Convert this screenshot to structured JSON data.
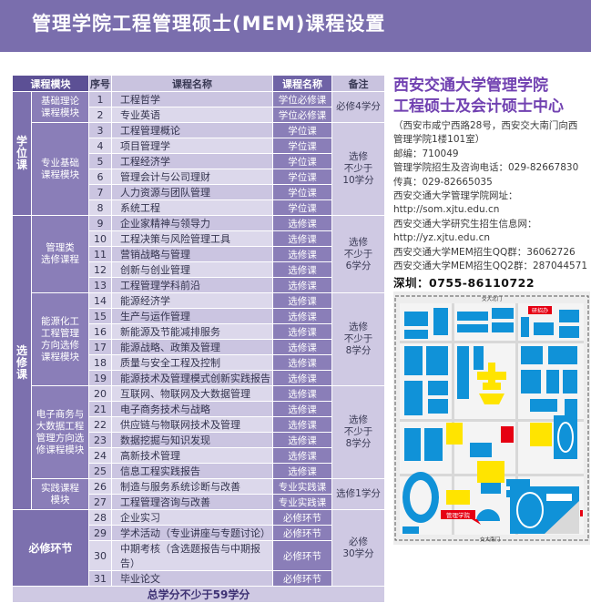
{
  "theme": {
    "banner_purple": "#7A6EAD",
    "header_dark_purple": "#5C5095",
    "cell_purple": "#8A7EB8",
    "stripe_dark": "#CBC5E1",
    "stripe_light": "#DCD8EB",
    "sidebar_title_purple": "#7141B1"
  },
  "banner": {
    "title": "管理学院工程管理硕士(MEM)课程设置"
  },
  "table": {
    "headers": {
      "module": "课程模块",
      "no": "序号",
      "name": "课程名称",
      "type": "课程名称",
      "note": "备注"
    },
    "categories": [
      {
        "label": "学位课",
        "start": 1,
        "end": 8,
        "horizontal": false
      },
      {
        "label": "选修课",
        "start": 9,
        "end": 27,
        "horizontal": false
      },
      {
        "label": "必修环节",
        "start": 28,
        "end": 31,
        "horizontal": true
      }
    ],
    "modules": [
      {
        "start": 1,
        "end": 2,
        "lines": [
          "基础理论",
          "课程模块"
        ]
      },
      {
        "start": 3,
        "end": 8,
        "lines": [
          "专业基础",
          "课程模块"
        ]
      },
      {
        "start": 9,
        "end": 13,
        "lines": [
          "管理类",
          "选修课程"
        ]
      },
      {
        "start": 14,
        "end": 19,
        "lines": [
          "能源化工",
          "工程管理",
          "方向选修",
          "课程模块"
        ]
      },
      {
        "start": 20,
        "end": 25,
        "lines": [
          "电子商务与",
          "大数据工程",
          "管理方向选",
          "修课程模块"
        ]
      },
      {
        "start": 26,
        "end": 27,
        "lines": [
          "实践课程",
          "模块"
        ]
      }
    ],
    "notes": [
      {
        "start": 1,
        "end": 2,
        "lines": [
          "必修4学分"
        ]
      },
      {
        "start": 3,
        "end": 8,
        "lines": [
          "选修",
          "不少于",
          "10学分"
        ]
      },
      {
        "start": 9,
        "end": 13,
        "lines": [
          "选修",
          "不少于",
          "6学分"
        ]
      },
      {
        "start": 14,
        "end": 19,
        "lines": [
          "选修",
          "不少于",
          "8学分"
        ]
      },
      {
        "start": 20,
        "end": 25,
        "lines": [
          "选修",
          "不少于",
          "8学分"
        ]
      },
      {
        "start": 26,
        "end": 27,
        "lines": [
          "选修1学分"
        ]
      },
      {
        "start": 28,
        "end": 31,
        "lines": [
          "必修",
          "30学分"
        ]
      }
    ],
    "courses": [
      {
        "no": "1",
        "name": "工程哲学",
        "type": "学位必修课"
      },
      {
        "no": "2",
        "name": "专业英语",
        "type": "学位必修课"
      },
      {
        "no": "3",
        "name": "工程管理概论",
        "type": "学位课"
      },
      {
        "no": "4",
        "name": "项目管理学",
        "type": "学位课"
      },
      {
        "no": "5",
        "name": "工程经济学",
        "type": "学位课"
      },
      {
        "no": "6",
        "name": "管理会计与公司理财",
        "type": "学位课"
      },
      {
        "no": "7",
        "name": "人力资源与团队管理",
        "type": "学位课"
      },
      {
        "no": "8",
        "name": "系统工程",
        "type": "学位课"
      },
      {
        "no": "9",
        "name": "企业家精神与领导力",
        "type": "选修课"
      },
      {
        "no": "10",
        "name": "工程决策与风险管理工具",
        "type": "选修课"
      },
      {
        "no": "11",
        "name": "营销战略与管理",
        "type": "选修课"
      },
      {
        "no": "12",
        "name": "创新与创业管理",
        "type": "选修课"
      },
      {
        "no": "13",
        "name": "工程管理学科前沿",
        "type": "选修课"
      },
      {
        "no": "14",
        "name": "能源经济学",
        "type": "选修课"
      },
      {
        "no": "15",
        "name": "生产与运作管理",
        "type": "选修课"
      },
      {
        "no": "16",
        "name": "新能源及节能减排服务",
        "type": "选修课"
      },
      {
        "no": "17",
        "name": "能源战略、政策及管理",
        "type": "选修课"
      },
      {
        "no": "18",
        "name": "质量与安全工程及控制",
        "type": "选修课"
      },
      {
        "no": "19",
        "name": "能源技术及管理模式创新实践报告",
        "type": "选修课"
      },
      {
        "no": "20",
        "name": "互联网、物联网及大数据管理",
        "type": "选修课"
      },
      {
        "no": "21",
        "name": "电子商务技术与战略",
        "type": "选修课"
      },
      {
        "no": "22",
        "name": "供应链与物联网技术及管理",
        "type": "选修课"
      },
      {
        "no": "23",
        "name": "数据挖掘与知识发现",
        "type": "选修课"
      },
      {
        "no": "24",
        "name": "高新技术管理",
        "type": "选修课"
      },
      {
        "no": "25",
        "name": "信息工程实践报告",
        "type": "选修课"
      },
      {
        "no": "26",
        "name": "制造与服务系统诊断与改善",
        "type": "专业实践课"
      },
      {
        "no": "27",
        "name": "工程管理咨询与改善",
        "type": "专业实践课"
      },
      {
        "no": "28",
        "name": "企业实习",
        "type": "必修环节"
      },
      {
        "no": "29",
        "name": "学术活动（专业讲座与专题讨论）",
        "type": "必修环节"
      },
      {
        "no": "30",
        "name": "中期考核（含选题报告与中期报告）",
        "type": "必修环节"
      },
      {
        "no": "31",
        "name": "毕业论文",
        "type": "必修环节"
      }
    ],
    "footer": "总学分不少于59学分"
  },
  "sidebar": {
    "title_line1": "西安交通大学管理学院",
    "title_line2": "工程硕士及会计硕士中心",
    "lines": [
      "（西安市咸宁西路28号，西安交大南门向西",
      "管理学院1楼101室）",
      "邮编：710049",
      "管理学院招生及咨询电话：029-82667830",
      "传真：029-82665035",
      "西安交通大学管理学院网址：",
      "http://som.xjtu.edu.cn",
      "西安交通大学研究生招生信息网：",
      "http://yz.xjtu.edu.cn",
      "西安交通大学MEM招生QQ群：36062726",
      "西安交通大学MEM招生QQ2群：287044571"
    ],
    "shenzhen": "深圳：0755-86110722"
  },
  "map": {
    "gate_top": "交大北门",
    "gate_bottom": "交大南门",
    "label_admissions": "研招办",
    "label_school": "管理学院",
    "colors": {
      "building": "#1092D8",
      "highlight": "#FFE400",
      "marker": "#E60012"
    }
  }
}
